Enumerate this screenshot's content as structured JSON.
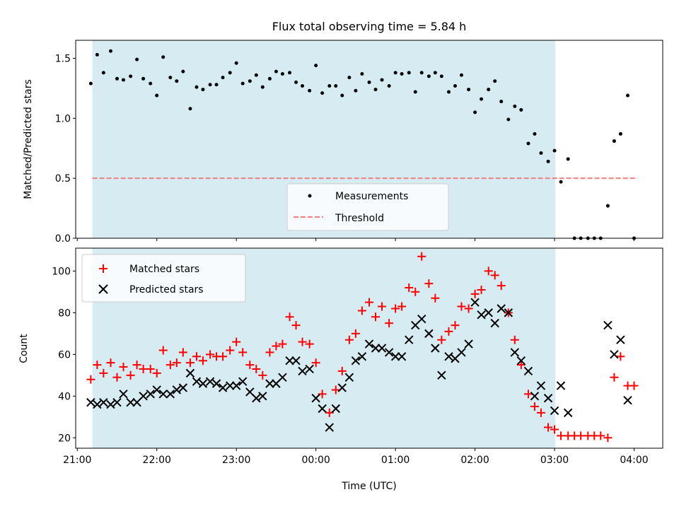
{
  "title": "Flux total observing time = 5.84 h",
  "chart_data": [
    {
      "type": "scatter",
      "panel": "top",
      "ylabel": "Matched/Predicted stars",
      "ylim": [
        0,
        1.65
      ],
      "yticks": [
        0.0,
        0.5,
        1.0,
        1.5
      ],
      "ytick_labels": [
        "0.0",
        "0.5",
        "1.0",
        "1.5"
      ],
      "shaded_range_hours": [
        21.19,
        27.01
      ],
      "shade_color": "#add8e6",
      "threshold": {
        "name": "Threshold",
        "value": 0.5,
        "x_range_hours": [
          21.19,
          28.04
        ],
        "color": "#f08080"
      },
      "series": [
        {
          "name": "Measurements",
          "color": "#000000",
          "x": [
            21.17,
            21.25,
            21.33,
            21.42,
            21.5,
            21.58,
            21.67,
            21.75,
            21.83,
            21.92,
            22.0,
            22.08,
            22.17,
            22.25,
            22.33,
            22.42,
            22.5,
            22.58,
            22.67,
            22.75,
            22.83,
            22.92,
            23.0,
            23.08,
            23.17,
            23.25,
            23.33,
            23.42,
            23.5,
            23.58,
            23.67,
            23.75,
            23.83,
            23.92,
            24.0,
            24.08,
            24.17,
            24.25,
            24.33,
            24.42,
            24.5,
            24.58,
            24.67,
            24.75,
            24.83,
            24.92,
            25.0,
            25.08,
            25.17,
            25.25,
            25.33,
            25.42,
            25.5,
            25.58,
            25.67,
            25.75,
            25.83,
            25.92,
            26.0,
            26.08,
            26.17,
            26.25,
            26.33,
            26.42,
            26.5,
            26.58,
            26.67,
            26.75,
            26.83,
            26.92,
            27.0,
            27.08,
            27.17,
            27.25,
            27.33,
            27.42,
            27.5,
            27.58,
            27.67,
            27.75,
            27.83,
            27.92,
            28.0
          ],
          "y": [
            1.29,
            1.53,
            1.38,
            1.56,
            1.33,
            1.32,
            1.35,
            1.49,
            1.33,
            1.29,
            1.19,
            1.51,
            1.34,
            1.31,
            1.39,
            1.08,
            1.26,
            1.24,
            1.28,
            1.28,
            1.34,
            1.38,
            1.46,
            1.29,
            1.31,
            1.36,
            1.26,
            1.33,
            1.39,
            1.37,
            1.38,
            1.3,
            1.27,
            1.23,
            1.44,
            1.21,
            1.27,
            1.27,
            1.19,
            1.34,
            1.23,
            1.37,
            1.3,
            1.24,
            1.32,
            1.27,
            1.38,
            1.37,
            1.38,
            1.22,
            1.38,
            1.35,
            1.38,
            1.35,
            1.22,
            1.27,
            1.36,
            1.24,
            1.05,
            1.16,
            1.24,
            1.31,
            1.14,
            0.99,
            1.1,
            1.07,
            0.79,
            0.87,
            0.71,
            0.64,
            0.73,
            0.47,
            0.66,
            0.0,
            0.0,
            0.0,
            0.0,
            0.0,
            0.27,
            0.81,
            0.87,
            1.19,
            0.0
          ]
        }
      ],
      "legend": {
        "position": "lower-center",
        "entries": [
          "Measurements",
          "Threshold"
        ]
      }
    },
    {
      "type": "scatter",
      "panel": "bottom",
      "xlabel": "Time (UTC)",
      "ylabel": "Count",
      "ylim": [
        15,
        111
      ],
      "yticks": [
        20,
        40,
        60,
        80,
        100
      ],
      "ytick_labels": [
        "20",
        "40",
        "60",
        "80",
        "100"
      ],
      "xlim_hours": [
        20.98,
        28.36
      ],
      "xticks_hours": [
        21,
        22,
        23,
        24,
        25,
        26,
        27,
        28
      ],
      "xtick_labels": [
        "21:00",
        "22:00",
        "23:00",
        "00:00",
        "01:00",
        "02:00",
        "03:00",
        "04:00"
      ],
      "shaded_range_hours": [
        21.19,
        27.01
      ],
      "shade_color": "#add8e6",
      "series": [
        {
          "name": "Matched stars",
          "marker": "+",
          "color": "#ff0000",
          "x": [
            21.17,
            21.25,
            21.33,
            21.42,
            21.5,
            21.58,
            21.67,
            21.75,
            21.83,
            21.92,
            22.0,
            22.08,
            22.17,
            22.25,
            22.33,
            22.42,
            22.5,
            22.58,
            22.67,
            22.75,
            22.83,
            22.92,
            23.0,
            23.08,
            23.17,
            23.25,
            23.33,
            23.42,
            23.5,
            23.58,
            23.67,
            23.75,
            23.83,
            23.92,
            24.0,
            24.08,
            24.17,
            24.25,
            24.33,
            24.42,
            24.5,
            24.58,
            24.67,
            24.75,
            24.83,
            24.92,
            25.0,
            25.08,
            25.17,
            25.25,
            25.33,
            25.42,
            25.5,
            25.58,
            25.67,
            25.75,
            25.83,
            25.92,
            26.0,
            26.08,
            26.17,
            26.25,
            26.33,
            26.42,
            26.5,
            26.58,
            26.67,
            26.75,
            26.83,
            26.92,
            27.0,
            27.08,
            27.17,
            27.25,
            27.33,
            27.42,
            27.5,
            27.58,
            27.67,
            27.75,
            27.83,
            27.92,
            28.0
          ],
          "y": [
            48,
            55,
            51,
            56,
            49,
            54,
            50,
            55,
            53,
            53,
            51,
            62,
            55,
            56,
            61,
            56,
            59,
            57,
            60,
            59,
            59,
            62,
            66,
            61,
            55,
            53,
            50,
            61,
            64,
            65,
            78,
            74,
            66,
            65,
            56,
            41,
            32,
            43,
            52,
            67,
            70,
            81,
            85,
            78,
            83,
            75,
            82,
            83,
            92,
            90,
            107,
            94,
            87,
            67,
            71,
            74,
            83,
            82,
            89,
            91,
            100,
            98,
            93,
            80,
            67,
            55,
            41,
            35,
            32,
            25,
            24,
            21,
            21,
            21,
            21,
            21,
            21,
            21,
            20,
            49,
            59,
            45,
            45
          ]
        },
        {
          "name": "Predicted stars",
          "marker": "x",
          "color": "#000000",
          "x": [
            21.17,
            21.25,
            21.33,
            21.42,
            21.5,
            21.58,
            21.67,
            21.75,
            21.83,
            21.92,
            22.0,
            22.08,
            22.17,
            22.25,
            22.33,
            22.42,
            22.5,
            22.58,
            22.67,
            22.75,
            22.83,
            22.92,
            23.0,
            23.08,
            23.17,
            23.25,
            23.33,
            23.42,
            23.5,
            23.58,
            23.67,
            23.75,
            23.83,
            23.92,
            24.0,
            24.08,
            24.17,
            24.25,
            24.33,
            24.42,
            24.5,
            24.58,
            24.67,
            24.75,
            24.83,
            24.92,
            25.0,
            25.08,
            25.17,
            25.25,
            25.33,
            25.42,
            25.5,
            25.58,
            25.67,
            25.75,
            25.83,
            25.92,
            26.0,
            26.08,
            26.17,
            26.25,
            26.33,
            26.42,
            26.5,
            26.58,
            26.67,
            26.75,
            26.83,
            26.92,
            27.0,
            27.08,
            27.17,
            27.67,
            27.75,
            27.83,
            27.92
          ],
          "y": [
            37,
            36,
            37,
            36,
            37,
            41,
            37,
            37,
            40,
            41,
            43,
            41,
            41,
            43,
            44,
            51,
            47,
            46,
            47,
            46,
            44,
            45,
            45,
            47,
            42,
            39,
            40,
            46,
            46,
            49,
            57,
            57,
            52,
            53,
            39,
            34,
            25,
            34,
            44,
            49,
            57,
            59,
            65,
            63,
            63,
            61,
            59,
            59,
            67,
            74,
            77,
            70,
            63,
            50,
            59,
            58,
            61,
            65,
            85,
            79,
            80,
            75,
            82,
            80,
            61,
            57,
            52,
            40,
            45,
            39,
            33,
            45,
            32,
            74,
            60,
            67,
            38
          ]
        }
      ],
      "legend": {
        "position": "upper-left",
        "entries": [
          "Matched stars",
          "Predicted stars"
        ]
      }
    }
  ]
}
